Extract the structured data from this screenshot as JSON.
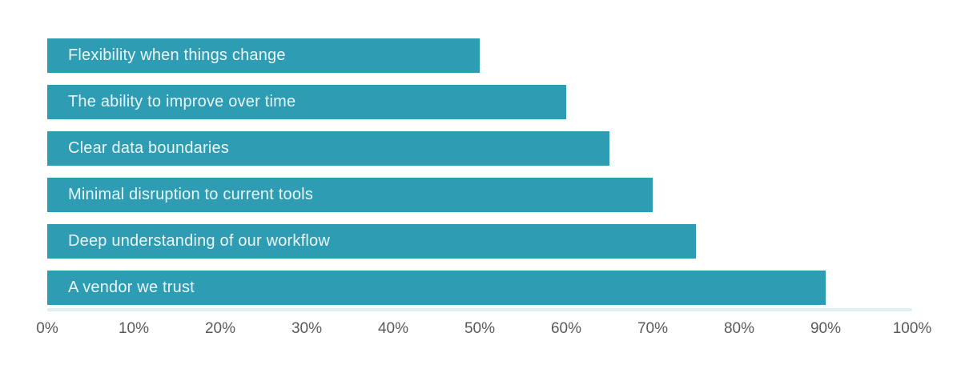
{
  "chart_data": {
    "type": "bar",
    "orientation": "horizontal",
    "title": "",
    "xlabel": "",
    "ylabel": "",
    "categories": [
      "Flexibility when things change",
      "The ability to improve over time",
      "Clear data boundaries",
      "Minimal disruption to current tools",
      "Deep understanding of our workflow",
      "A vendor we trust"
    ],
    "values": [
      50,
      60,
      65,
      70,
      75,
      90
    ],
    "value_unit": "%",
    "xlim": [
      0,
      100
    ],
    "x_tick_values": [
      0,
      10,
      20,
      30,
      40,
      50,
      60,
      70,
      80,
      90,
      100
    ],
    "x_tick_labels": [
      "0%",
      "10%",
      "20%",
      "30%",
      "40%",
      "50%",
      "60%",
      "70%",
      "80%",
      "90%",
      "100%"
    ],
    "grid": false,
    "legend": false,
    "bar_color": "#2E9DB4",
    "bar_label_color": "#EAF6F8",
    "axis_label_color": "#5A5A5A",
    "baseline_color": "#DCEFF4",
    "background_color": "#FFFFFF"
  }
}
